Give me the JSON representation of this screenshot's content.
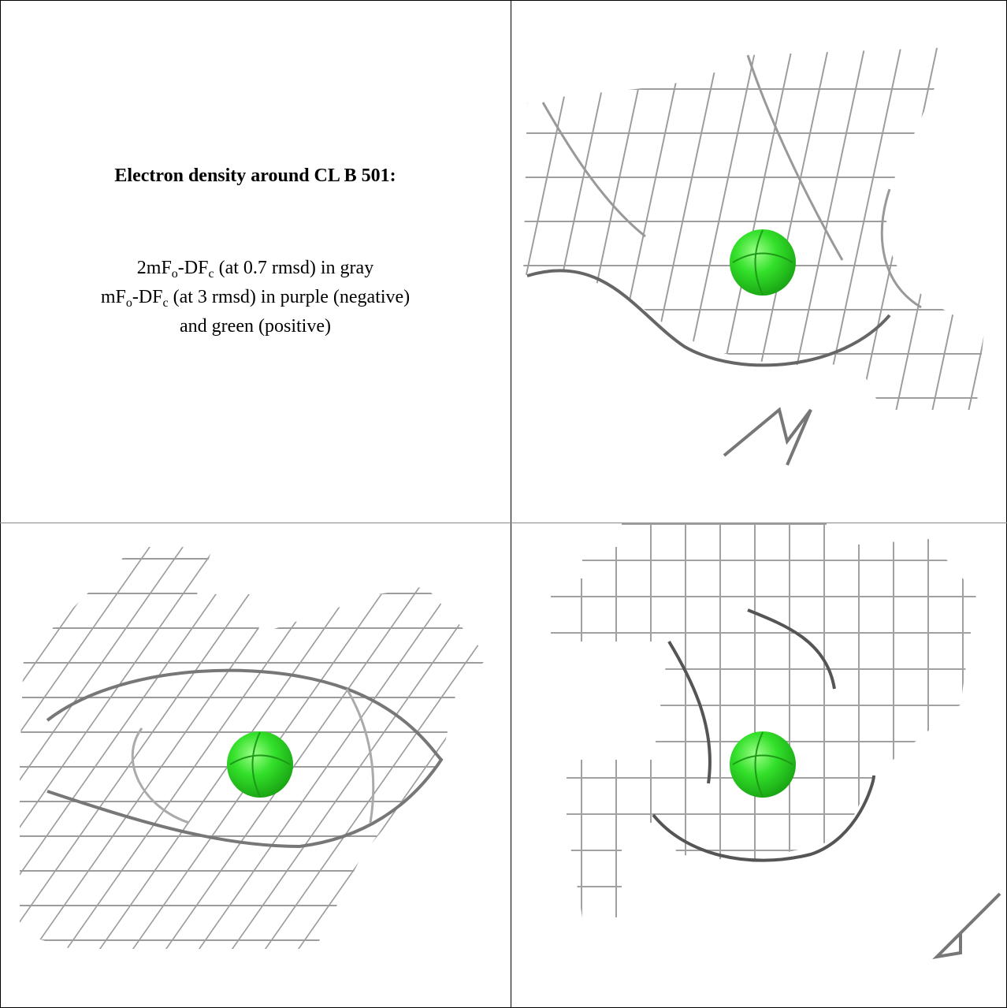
{
  "caption": {
    "title": "Electron density around CL B 501:",
    "lines": [
      [
        "2mF",
        "o",
        "-DF",
        "c",
        " (at 0.7 rmsd) in gray"
      ],
      [
        "mF",
        "o",
        "-DF",
        "c",
        " (at 3 rmsd) in purple (negative)"
      ],
      [
        "and green (positive)"
      ]
    ]
  }
}
